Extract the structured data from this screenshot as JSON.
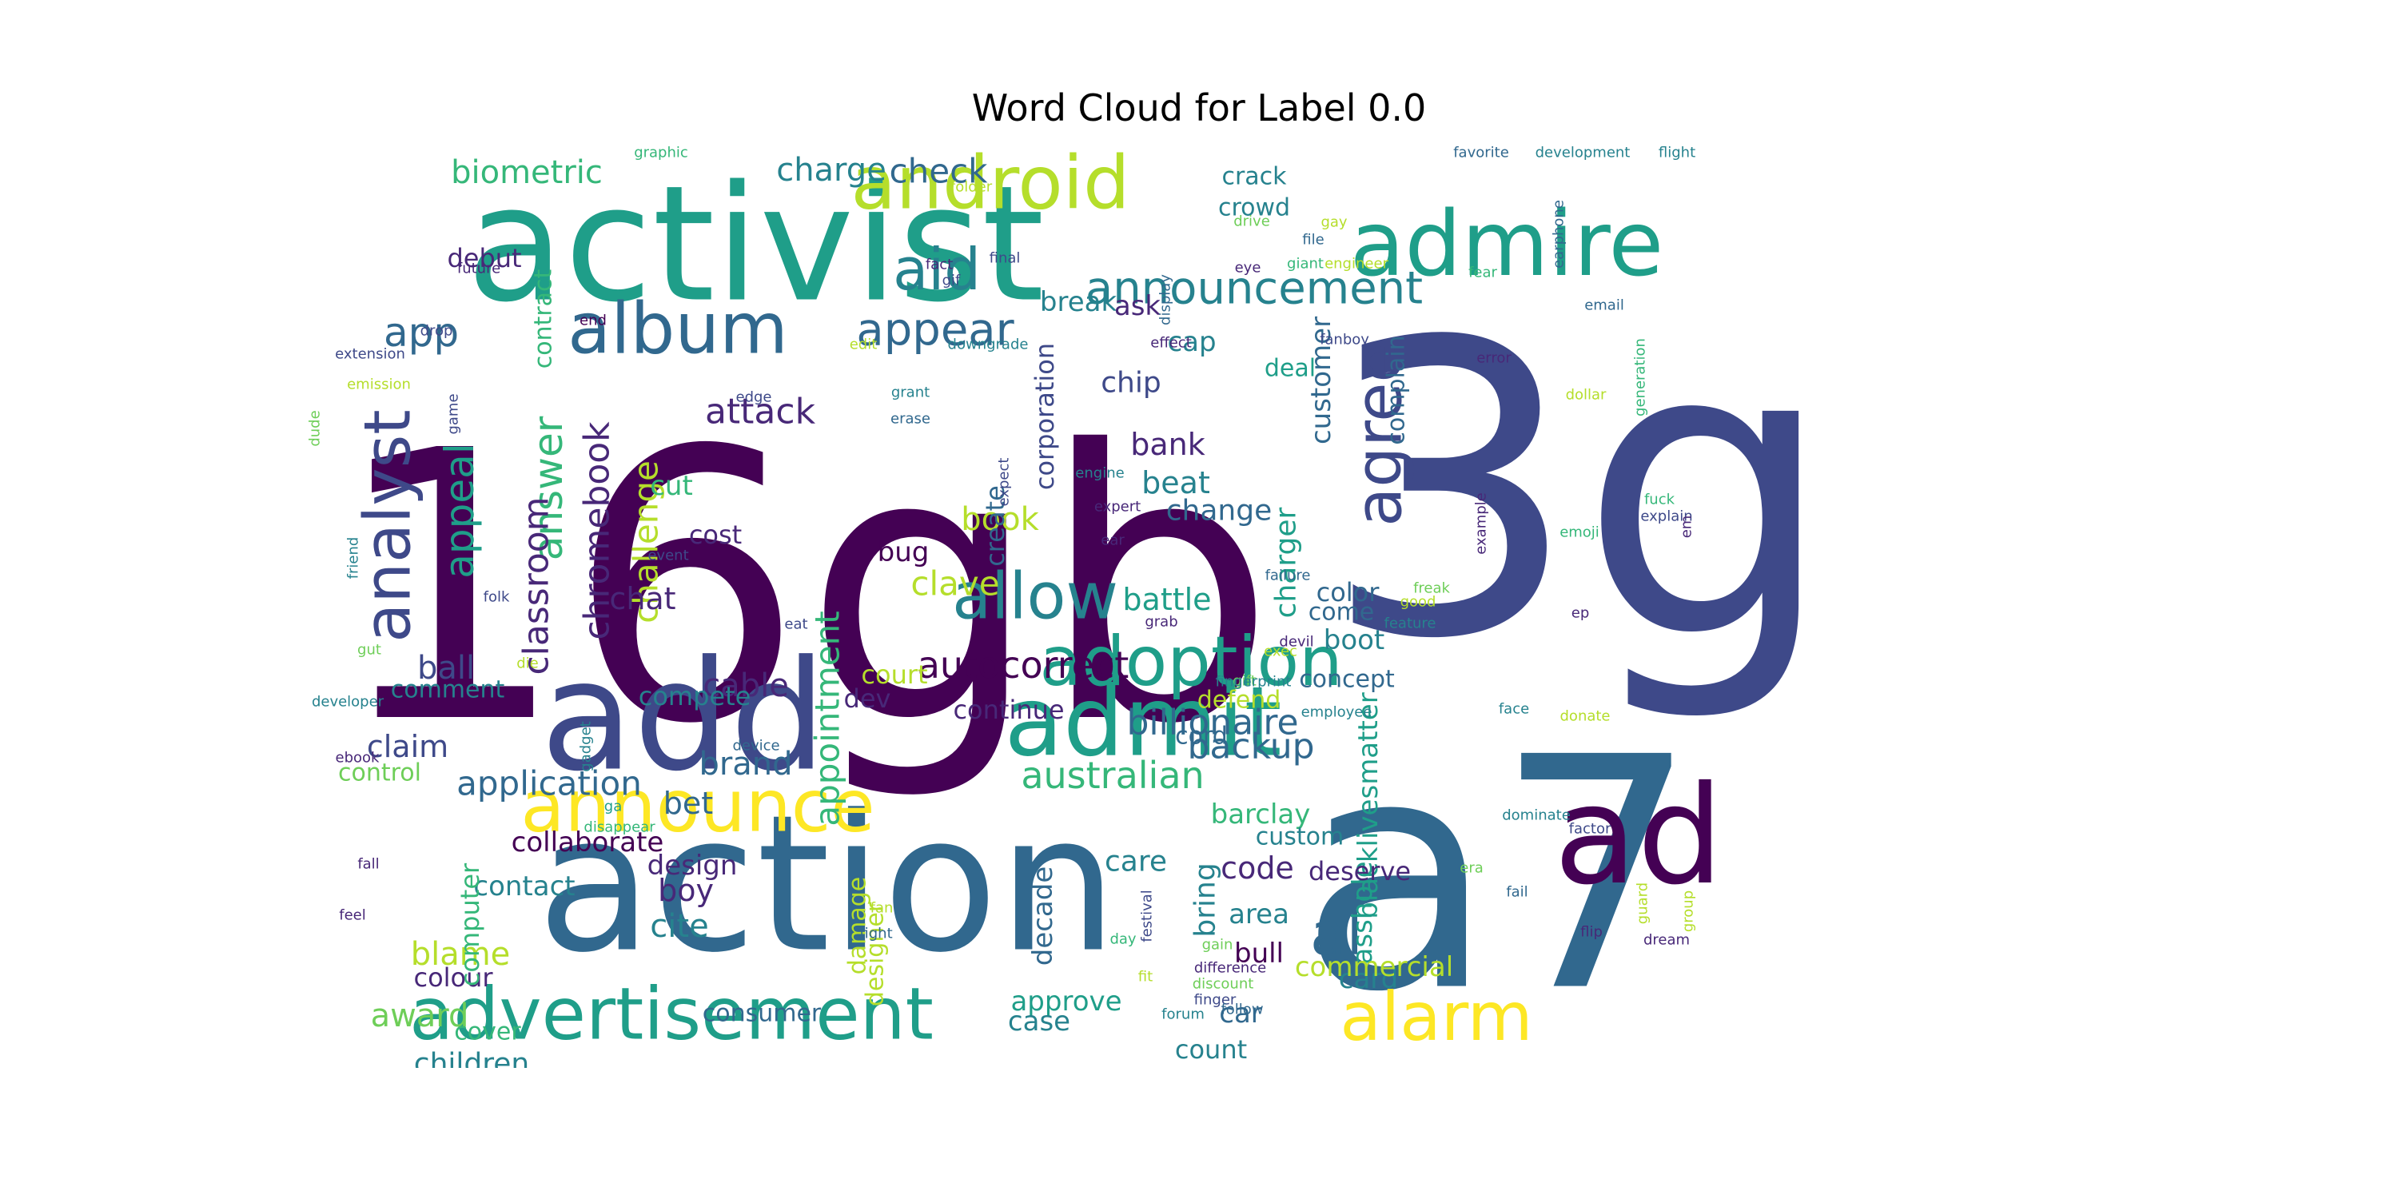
{
  "chart_data": {
    "type": "wordcloud",
    "title": "Word Cloud for Label 0.0",
    "palette": [
      "#440154",
      "#482878",
      "#3e4989",
      "#31688e",
      "#26828e",
      "#1f9e89",
      "#35b779",
      "#6ece58",
      "#b5de2b",
      "#fde725"
    ],
    "words": [
      {
        "text": "3g",
        "weight": 100,
        "color": "#3e4989"
      },
      {
        "text": "16gb",
        "weight": 98,
        "color": "#440154"
      },
      {
        "text": "a7",
        "weight": 96,
        "color": "#31688e"
      },
      {
        "text": "action",
        "weight": 70,
        "color": "#31688e"
      },
      {
        "text": "activist",
        "weight": 62,
        "color": "#1f9e89"
      },
      {
        "text": "add",
        "weight": 58,
        "color": "#3e4989"
      },
      {
        "text": "ad",
        "weight": 52,
        "color": "#440154"
      },
      {
        "text": "admire",
        "weight": 40,
        "color": "#1f9e89"
      },
      {
        "text": "admit",
        "weight": 40,
        "color": "#1f9e89"
      },
      {
        "text": "announce",
        "weight": 30,
        "color": "#fde725"
      },
      {
        "text": "advertisement",
        "weight": 30,
        "color": "#1f9e89"
      },
      {
        "text": "adoption",
        "weight": 29,
        "color": "#1f9e89"
      },
      {
        "text": "android",
        "weight": 28,
        "color": "#b5de2b"
      },
      {
        "text": "alarm",
        "weight": 28,
        "color": "#fde725"
      },
      {
        "text": "analyst",
        "weight": 28,
        "color": "#3e4989"
      },
      {
        "text": "agree",
        "weight": 27,
        "color": "#3e4989"
      },
      {
        "text": "album",
        "weight": 27,
        "color": "#31688e"
      },
      {
        "text": "allow",
        "weight": 27,
        "color": "#26828e"
      },
      {
        "text": "al",
        "weight": 26,
        "color": "#31688e"
      },
      {
        "text": "aid",
        "weight": 25,
        "color": "#26828e"
      },
      {
        "text": "appear",
        "weight": 21,
        "color": "#31688e"
      },
      {
        "text": "announcement",
        "weight": 21,
        "color": "#26828e"
      },
      {
        "text": "appeal",
        "weight": 19,
        "color": "#1f9e89"
      },
      {
        "text": "answer",
        "weight": 17,
        "color": "#35b779"
      },
      {
        "text": "app",
        "weight": 17,
        "color": "#31688e"
      },
      {
        "text": "autocorrect",
        "weight": 16,
        "color": "#440154"
      },
      {
        "text": "australian",
        "weight": 15,
        "color": "#35b779"
      },
      {
        "text": "backup",
        "weight": 15,
        "color": "#31688e"
      },
      {
        "text": "billionaire",
        "weight": 15,
        "color": "#31688e"
      },
      {
        "text": "chromebook",
        "weight": 15,
        "color": "#482878"
      },
      {
        "text": "classroom",
        "weight": 14,
        "color": "#482878"
      },
      {
        "text": "challenge",
        "weight": 14,
        "color": "#b5de2b"
      },
      {
        "text": "appointment",
        "weight": 14,
        "color": "#35b779"
      },
      {
        "text": "application",
        "weight": 14,
        "color": "#31688e"
      },
      {
        "text": "biometric",
        "weight": 14,
        "color": "#35b779"
      },
      {
        "text": "charge",
        "weight": 14,
        "color": "#26828e"
      },
      {
        "text": "check",
        "weight": 14,
        "color": "#31688e"
      },
      {
        "text": "attack",
        "weight": 14,
        "color": "#482878"
      },
      {
        "text": "clave",
        "weight": 14,
        "color": "#b5de2b"
      },
      {
        "text": "chat",
        "weight": 14,
        "color": "#482878"
      },
      {
        "text": "claim",
        "weight": 14,
        "color": "#3e4989"
      },
      {
        "text": "ball",
        "weight": 14,
        "color": "#3e4989"
      },
      {
        "text": "brand",
        "weight": 14,
        "color": "#31688e"
      },
      {
        "text": "cable",
        "weight": 14,
        "color": "#482878"
      },
      {
        "text": "bet",
        "weight": 14,
        "color": "#31688e"
      },
      {
        "text": "book",
        "weight": 14,
        "color": "#b5de2b"
      },
      {
        "text": "battle",
        "weight": 14,
        "color": "#1f9e89"
      },
      {
        "text": "beat",
        "weight": 14,
        "color": "#26828e"
      },
      {
        "text": "bank",
        "weight": 14,
        "color": "#482878"
      },
      {
        "text": "chip",
        "weight": 14,
        "color": "#3e4989"
      },
      {
        "text": "change",
        "weight": 14,
        "color": "#31688e"
      },
      {
        "text": "charger",
        "weight": 14,
        "color": "#1f9e89"
      },
      {
        "text": "customer",
        "weight": 14,
        "color": "#31688e"
      },
      {
        "text": "blacklivesmatter",
        "weight": 14,
        "color": "#1f9e89"
      },
      {
        "text": "barclay",
        "weight": 14,
        "color": "#35b779"
      },
      {
        "text": "code",
        "weight": 14,
        "color": "#482878"
      },
      {
        "text": "care",
        "weight": 14,
        "color": "#26828e"
      },
      {
        "text": "bring",
        "weight": 14,
        "color": "#26828e"
      },
      {
        "text": "bull",
        "weight": 14,
        "color": "#440154"
      },
      {
        "text": "area",
        "weight": 14,
        "color": "#26828e"
      },
      {
        "text": "asshole",
        "weight": 14,
        "color": "#1f9e89"
      },
      {
        "text": "card",
        "weight": 14,
        "color": "#26828e"
      },
      {
        "text": "car",
        "weight": 14,
        "color": "#31688e"
      },
      {
        "text": "approve",
        "weight": 14,
        "color": "#1f9e89"
      },
      {
        "text": "case",
        "weight": 14,
        "color": "#26828e"
      },
      {
        "text": "cite",
        "weight": 14,
        "color": "#26828e"
      },
      {
        "text": "blame",
        "weight": 14,
        "color": "#b5de2b"
      },
      {
        "text": "award",
        "weight": 14,
        "color": "#6ece58"
      },
      {
        "text": "children",
        "weight": 14,
        "color": "#26828e"
      },
      {
        "text": "boy",
        "weight": 14,
        "color": "#482878"
      },
      {
        "text": "break",
        "weight": 12,
        "color": "#26828e"
      },
      {
        "text": "ask",
        "weight": 12,
        "color": "#482878"
      },
      {
        "text": "cap",
        "weight": 12,
        "color": "#26828e"
      },
      {
        "text": "crack",
        "weight": 12,
        "color": "#26828e"
      },
      {
        "text": "crowd",
        "weight": 12,
        "color": "#26828e"
      },
      {
        "text": "deal",
        "weight": 12,
        "color": "#1f9e89"
      },
      {
        "text": "complain",
        "weight": 12,
        "color": "#31688e"
      },
      {
        "text": "color",
        "weight": 12,
        "color": "#31688e"
      },
      {
        "text": "come",
        "weight": 12,
        "color": "#31688e"
      },
      {
        "text": "boot",
        "weight": 12,
        "color": "#26828e"
      },
      {
        "text": "concept",
        "weight": 12,
        "color": "#31688e"
      },
      {
        "text": "defend",
        "weight": 12,
        "color": "#b5de2b"
      },
      {
        "text": "cord",
        "weight": 12,
        "color": "#31688e"
      },
      {
        "text": "custom",
        "weight": 12,
        "color": "#26828e"
      },
      {
        "text": "deserve",
        "weight": 12,
        "color": "#482878"
      },
      {
        "text": "commercial",
        "weight": 12,
        "color": "#b5de2b"
      },
      {
        "text": "count",
        "weight": 12,
        "color": "#26828e"
      },
      {
        "text": "court",
        "weight": 12,
        "color": "#b5de2b"
      },
      {
        "text": "dev",
        "weight": 12,
        "color": "#482878"
      },
      {
        "text": "continue",
        "weight": 12,
        "color": "#482878"
      },
      {
        "text": "bug",
        "weight": 12,
        "color": "#440154"
      },
      {
        "text": "corporation",
        "weight": 12,
        "color": "#3e4989"
      },
      {
        "text": "create",
        "weight": 12,
        "color": "#31688e"
      },
      {
        "text": "cost",
        "weight": 12,
        "color": "#482878"
      },
      {
        "text": "cut",
        "weight": 12,
        "color": "#35b779"
      },
      {
        "text": "compete",
        "weight": 12,
        "color": "#26828e"
      },
      {
        "text": "comment",
        "weight": 12,
        "color": "#26828e"
      },
      {
        "text": "control",
        "weight": 12,
        "color": "#6ece58"
      },
      {
        "text": "collaborate",
        "weight": 12,
        "color": "#440154"
      },
      {
        "text": "contact",
        "weight": 12,
        "color": "#26828e"
      },
      {
        "text": "design",
        "weight": 12,
        "color": "#482878"
      },
      {
        "text": "colour",
        "weight": 12,
        "color": "#482878"
      },
      {
        "text": "computer",
        "weight": 12,
        "color": "#35b779"
      },
      {
        "text": "decade",
        "weight": 12,
        "color": "#31688e"
      },
      {
        "text": "damage",
        "weight": 12,
        "color": "#b5de2b"
      },
      {
        "text": "designer",
        "weight": 12,
        "color": "#b5de2b"
      },
      {
        "text": "cover",
        "weight": 12,
        "color": "#35b779"
      },
      {
        "text": "consumer",
        "weight": 12,
        "color": "#31688e"
      },
      {
        "text": "debut",
        "weight": 12,
        "color": "#482878"
      },
      {
        "text": "contract",
        "weight": 12,
        "color": "#35b779"
      },
      {
        "text": "graphic",
        "weight": 6,
        "color": "#35b779"
      },
      {
        "text": "folder",
        "weight": 6,
        "color": "#b5de2b"
      },
      {
        "text": "gif",
        "weight": 6,
        "color": "#3e4989"
      },
      {
        "text": "fact",
        "weight": 6,
        "color": "#482878"
      },
      {
        "text": "final",
        "weight": 6,
        "color": "#3e4989"
      },
      {
        "text": "display",
        "weight": 6,
        "color": "#31688e"
      },
      {
        "text": "eye",
        "weight": 6,
        "color": "#482878"
      },
      {
        "text": "gay",
        "weight": 6,
        "color": "#b5de2b"
      },
      {
        "text": "drive",
        "weight": 6,
        "color": "#6ece58"
      },
      {
        "text": "file",
        "weight": 6,
        "color": "#31688e"
      },
      {
        "text": "giant",
        "weight": 6,
        "color": "#35b779"
      },
      {
        "text": "engineer",
        "weight": 6,
        "color": "#b5de2b"
      },
      {
        "text": "favorite",
        "weight": 6,
        "color": "#31688e"
      },
      {
        "text": "development",
        "weight": 6,
        "color": "#26828e"
      },
      {
        "text": "flight",
        "weight": 6,
        "color": "#26828e"
      },
      {
        "text": "fear",
        "weight": 6,
        "color": "#35b779"
      },
      {
        "text": "earphone",
        "weight": 6,
        "color": "#31688e"
      },
      {
        "text": "email",
        "weight": 6,
        "color": "#31688e"
      },
      {
        "text": "future",
        "weight": 6,
        "color": "#482878"
      },
      {
        "text": "drop",
        "weight": 6,
        "color": "#3e4989"
      },
      {
        "text": "end",
        "weight": 6,
        "color": "#440154"
      },
      {
        "text": "extension",
        "weight": 6,
        "color": "#3e4989"
      },
      {
        "text": "edit",
        "weight": 6,
        "color": "#b5de2b"
      },
      {
        "text": "downgrade",
        "weight": 6,
        "color": "#26828e"
      },
      {
        "text": "effect",
        "weight": 6,
        "color": "#482878"
      },
      {
        "text": "fanboy",
        "weight": 6,
        "color": "#3e4989"
      },
      {
        "text": "error",
        "weight": 6,
        "color": "#482878"
      },
      {
        "text": "emission",
        "weight": 6,
        "color": "#b5de2b"
      },
      {
        "text": "game",
        "weight": 6,
        "color": "#3e4989"
      },
      {
        "text": "dude",
        "weight": 6,
        "color": "#6ece58"
      },
      {
        "text": "edge",
        "weight": 6,
        "color": "#3e4989"
      },
      {
        "text": "grant",
        "weight": 6,
        "color": "#26828e"
      },
      {
        "text": "erase",
        "weight": 6,
        "color": "#31688e"
      },
      {
        "text": "expect",
        "weight": 6,
        "color": "#3e4989"
      },
      {
        "text": "engine",
        "weight": 6,
        "color": "#26828e"
      },
      {
        "text": "expert",
        "weight": 6,
        "color": "#482878"
      },
      {
        "text": "ear",
        "weight": 6,
        "color": "#482878"
      },
      {
        "text": "freak",
        "weight": 6,
        "color": "#6ece58"
      },
      {
        "text": "dollar",
        "weight": 6,
        "color": "#b5de2b"
      },
      {
        "text": "generation",
        "weight": 6,
        "color": "#35b779"
      },
      {
        "text": "fuck",
        "weight": 6,
        "color": "#35b779"
      },
      {
        "text": "explain",
        "weight": 6,
        "color": "#3e4989"
      },
      {
        "text": "emoji",
        "weight": 6,
        "color": "#35b779"
      },
      {
        "text": "em",
        "weight": 6,
        "color": "#482878"
      },
      {
        "text": "event",
        "weight": 6,
        "color": "#3e4989"
      },
      {
        "text": "example",
        "weight": 6,
        "color": "#482878"
      },
      {
        "text": "friend",
        "weight": 6,
        "color": "#26828e"
      },
      {
        "text": "folk",
        "weight": 6,
        "color": "#3e4989"
      },
      {
        "text": "failure",
        "weight": 6,
        "color": "#31688e"
      },
      {
        "text": "good",
        "weight": 6,
        "color": "#b5de2b"
      },
      {
        "text": "ep",
        "weight": 6,
        "color": "#482878"
      },
      {
        "text": "grab",
        "weight": 6,
        "color": "#482878"
      },
      {
        "text": "feature",
        "weight": 6,
        "color": "#26828e"
      },
      {
        "text": "eat",
        "weight": 6,
        "color": "#3e4989"
      },
      {
        "text": "devil",
        "weight": 6,
        "color": "#482878"
      },
      {
        "text": "exec",
        "weight": 6,
        "color": "#b5de2b"
      },
      {
        "text": "gut",
        "weight": 6,
        "color": "#6ece58"
      },
      {
        "text": "die",
        "weight": 6,
        "color": "#b5de2b"
      },
      {
        "text": "gift",
        "weight": 6,
        "color": "#6ece58"
      },
      {
        "text": "fingerprint",
        "weight": 6,
        "color": "#26828e"
      },
      {
        "text": "developer",
        "weight": 6,
        "color": "#26828e"
      },
      {
        "text": "ebook",
        "weight": 6,
        "color": "#482878"
      },
      {
        "text": "employee",
        "weight": 6,
        "color": "#26828e"
      },
      {
        "text": "gadget",
        "weight": 6,
        "color": "#26828e"
      },
      {
        "text": "device",
        "weight": 6,
        "color": "#31688e"
      },
      {
        "text": "face",
        "weight": 6,
        "color": "#26828e"
      },
      {
        "text": "donate",
        "weight": 6,
        "color": "#b5de2b"
      },
      {
        "text": "ga",
        "weight": 6,
        "color": "#1f9e89"
      },
      {
        "text": "disappear",
        "weight": 6,
        "color": "#35b779"
      },
      {
        "text": "fall",
        "weight": 6,
        "color": "#482878"
      },
      {
        "text": "dominate",
        "weight": 6,
        "color": "#26828e"
      },
      {
        "text": "factor",
        "weight": 6,
        "color": "#3e4989"
      },
      {
        "text": "guard",
        "weight": 6,
        "color": "#b5de2b"
      },
      {
        "text": "era",
        "weight": 6,
        "color": "#6ece58"
      },
      {
        "text": "fail",
        "weight": 6,
        "color": "#31688e"
      },
      {
        "text": "feel",
        "weight": 6,
        "color": "#482878"
      },
      {
        "text": "fan",
        "weight": 6,
        "color": "#b5de2b"
      },
      {
        "text": "fight",
        "weight": 6,
        "color": "#31688e"
      },
      {
        "text": "festival",
        "weight": 6,
        "color": "#3e4989"
      },
      {
        "text": "day",
        "weight": 6,
        "color": "#35b779"
      },
      {
        "text": "gain",
        "weight": 6,
        "color": "#6ece58"
      },
      {
        "text": "flip",
        "weight": 6,
        "color": "#482878"
      },
      {
        "text": "dream",
        "weight": 6,
        "color": "#482878"
      },
      {
        "text": "group",
        "weight": 6,
        "color": "#b5de2b"
      },
      {
        "text": "discount",
        "weight": 6,
        "color": "#6ece58"
      },
      {
        "text": "fit",
        "weight": 6,
        "color": "#b5de2b"
      },
      {
        "text": "finger",
        "weight": 6,
        "color": "#3e4989"
      },
      {
        "text": "difference",
        "weight": 6,
        "color": "#482878"
      },
      {
        "text": "follow",
        "weight": 6,
        "color": "#31688e"
      },
      {
        "text": "forum",
        "weight": 6,
        "color": "#26828e"
      }
    ]
  }
}
